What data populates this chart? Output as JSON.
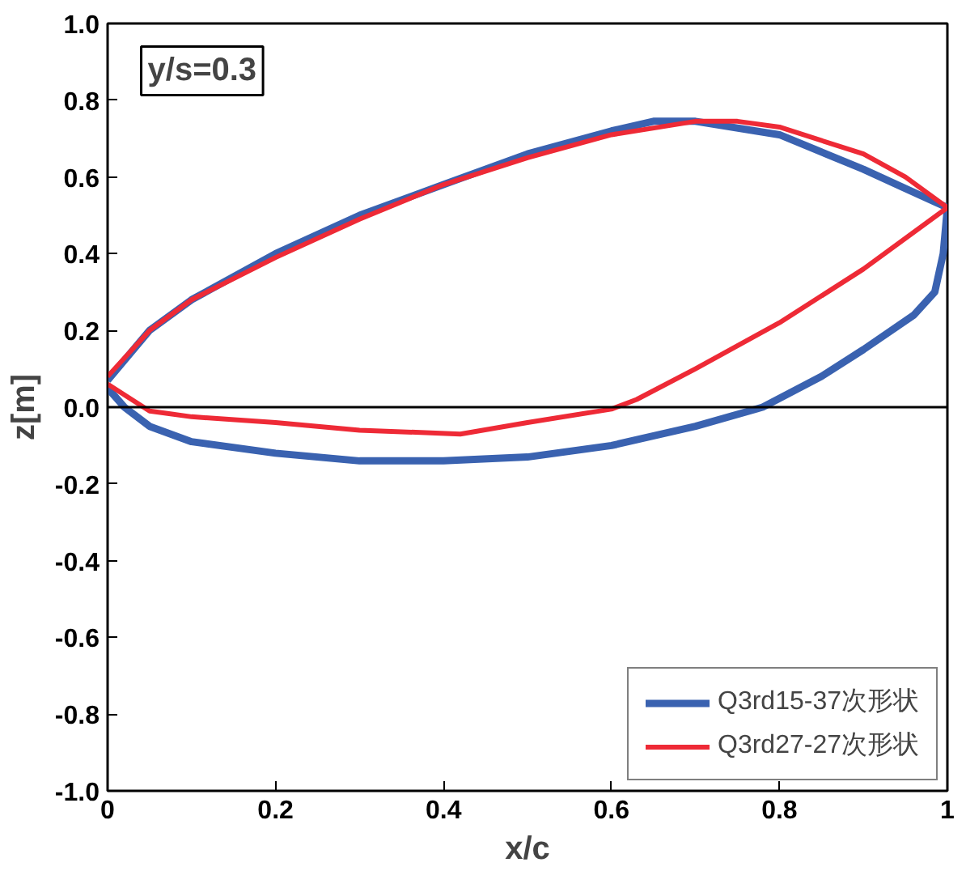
{
  "chart_data": {
    "type": "line",
    "xlabel": "x/c",
    "ylabel": "z[m]",
    "annotations": [
      "y/s=0.3"
    ],
    "xlim": [
      0,
      1
    ],
    "xticks": [
      0,
      0.2,
      0.4,
      0.6,
      0.8,
      1
    ],
    "ylim": [
      -1,
      1
    ],
    "yticks": [
      {
        "value": -1,
        "label": "-1.0"
      },
      {
        "value": -0.8,
        "label": "-0.8"
      },
      {
        "value": -0.6,
        "label": "-0.6"
      },
      {
        "value": -0.4,
        "label": "-0.4"
      },
      {
        "value": -0.2,
        "label": "-0.2"
      },
      {
        "value": 0,
        "label": "0.0"
      },
      {
        "value": 0.2,
        "label": "0.2"
      },
      {
        "value": 0.4,
        "label": "0.4"
      },
      {
        "value": 0.6,
        "label": "0.6"
      },
      {
        "value": 0.8,
        "label": "0.8"
      },
      {
        "value": 1,
        "label": "1.0"
      }
    ],
    "grid": false,
    "legend": "bottom right",
    "marker": "none",
    "line_style": "solid",
    "ref_lines": [
      {
        "axis": "y",
        "value": 0,
        "color": "#000000"
      }
    ],
    "series": [
      {
        "name": "Q3rd15-37次形状",
        "color": "#3a62b0",
        "x": [
          0,
          0.05,
          0.1,
          0.2,
          0.3,
          0.4,
          0.5,
          0.6,
          0.65,
          0.7,
          0.8,
          0.9,
          0.95,
          1.0,
          0.995,
          0.985,
          0.96,
          0.9,
          0.85,
          0.78,
          0.7,
          0.6,
          0.5,
          0.4,
          0.3,
          0.2,
          0.1,
          0.05,
          0.02,
          0
        ],
        "values": [
          0.07,
          0.2,
          0.28,
          0.4,
          0.5,
          0.58,
          0.66,
          0.72,
          0.745,
          0.745,
          0.71,
          0.62,
          0.57,
          0.52,
          0.4,
          0.3,
          0.24,
          0.15,
          0.08,
          0.0,
          -0.05,
          -0.1,
          -0.13,
          -0.14,
          -0.14,
          -0.12,
          -0.09,
          -0.05,
          0.0,
          0.05
        ]
      },
      {
        "name": "Q3rd27-27次形状",
        "color": "#ee2a36",
        "x": [
          0,
          0.05,
          0.1,
          0.2,
          0.3,
          0.4,
          0.5,
          0.6,
          0.7,
          0.75,
          0.8,
          0.9,
          0.95,
          1.0,
          0.9,
          0.8,
          0.7,
          0.63,
          0.6,
          0.5,
          0.42,
          0.3,
          0.2,
          0.1,
          0.05,
          0
        ],
        "values": [
          0.08,
          0.2,
          0.28,
          0.39,
          0.49,
          0.58,
          0.65,
          0.71,
          0.745,
          0.745,
          0.73,
          0.66,
          0.6,
          0.52,
          0.36,
          0.22,
          0.1,
          0.02,
          -0.005,
          -0.04,
          -0.07,
          -0.06,
          -0.04,
          -0.025,
          -0.01,
          0.06
        ]
      }
    ]
  }
}
